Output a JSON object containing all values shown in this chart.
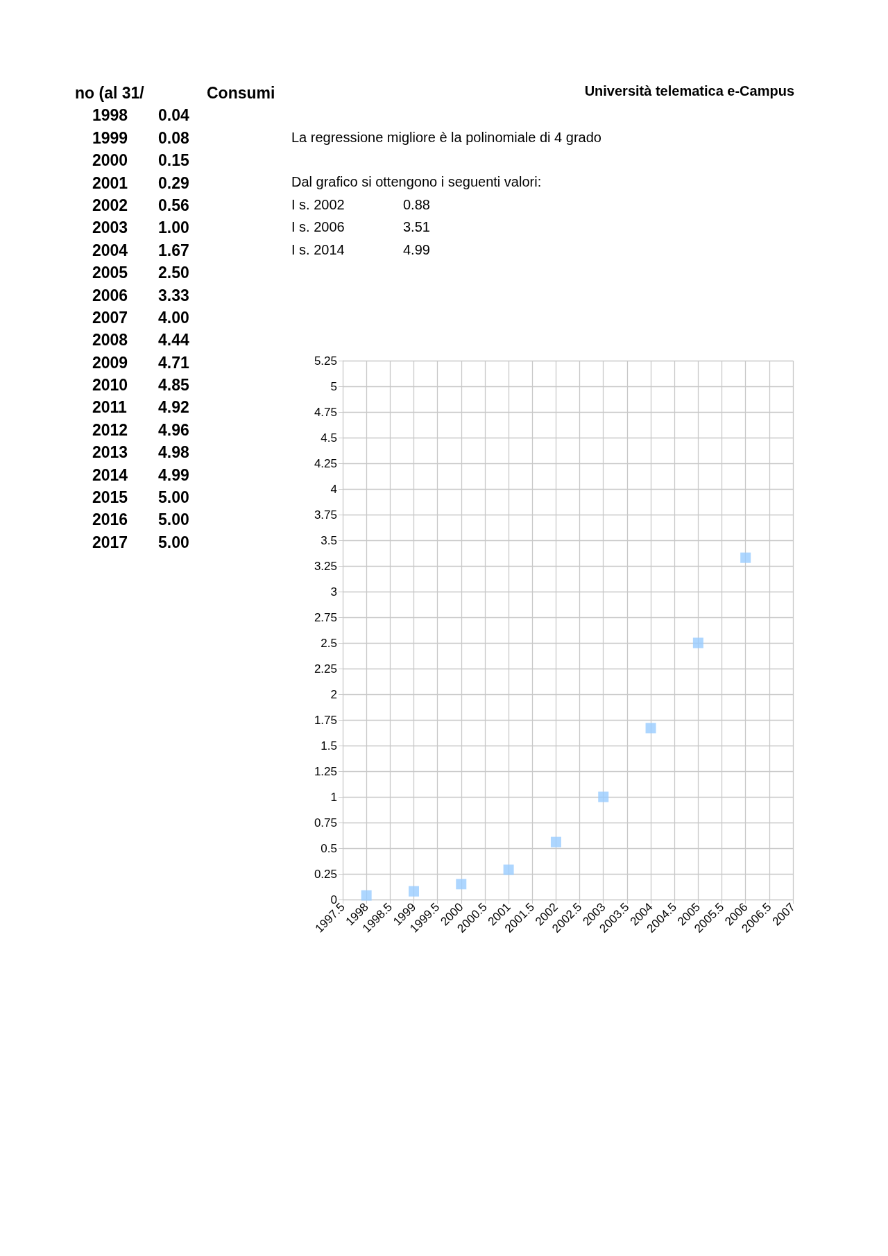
{
  "chart_data": [
    {
      "type": "other",
      "annotations": [
        "no (al 31/\tConsumi",
        "1998\t0.04",
        "1999\t0.08",
        "2000\t0.15",
        "2001\t0.29",
        "2002\t0.56",
        "2003\t1.00",
        "2004\t1.67",
        "2005\t2.50",
        "2006\t3.33",
        "2007\t4.00",
        "2008\t4.44",
        "2009\t4.71",
        "2010\t4.85",
        "2011\t4.92",
        "2012\t4.96",
        "2013\t4.98",
        "2014\t4.99",
        "2015\t5.00",
        "2016\t5.00",
        "2017\t5.00"
      ]
    },
    {
      "type": "scatter",
      "title": "Università telematica e-Campus",
      "annotations": [
        "La regressione migliore è la polinomiale di 4 grado",
        "Dal grafico si ottengono i seguenti valori:",
        "I s. 2002\t0.88",
        "I s. 2006\t3.51",
        "I s. 2014\t4.99"
      ],
      "x": [
        1998,
        1999,
        2000,
        2001,
        2002,
        2003,
        2004,
        2005,
        2006
      ],
      "series": [
        {
          "color": "#99ccff",
          "values": [
            0.04,
            0.08,
            0.15,
            0.29,
            0.56,
            1.0,
            1.67,
            2.5,
            3.33
          ]
        }
      ],
      "xlim": [
        1997.5,
        2007
      ],
      "xticks": [
        1997.5,
        1998,
        1998.5,
        1999,
        1999.5,
        2000,
        2000.5,
        2001,
        2001.5,
        2002,
        2002.5,
        2003,
        2003.5,
        2004,
        2004.5,
        2005,
        2005.5,
        2006,
        2006.5,
        2007
      ],
      "ylim": [
        0,
        5.25
      ],
      "yticks": [
        0,
        0.25,
        0.5,
        0.75,
        1,
        1.25,
        1.5,
        1.75,
        2,
        2.25,
        2.5,
        2.75,
        3,
        3.25,
        3.5,
        3.75,
        4,
        4.25,
        4.5,
        4.75,
        5,
        5.25
      ],
      "grid": true,
      "marker": "square"
    }
  ]
}
